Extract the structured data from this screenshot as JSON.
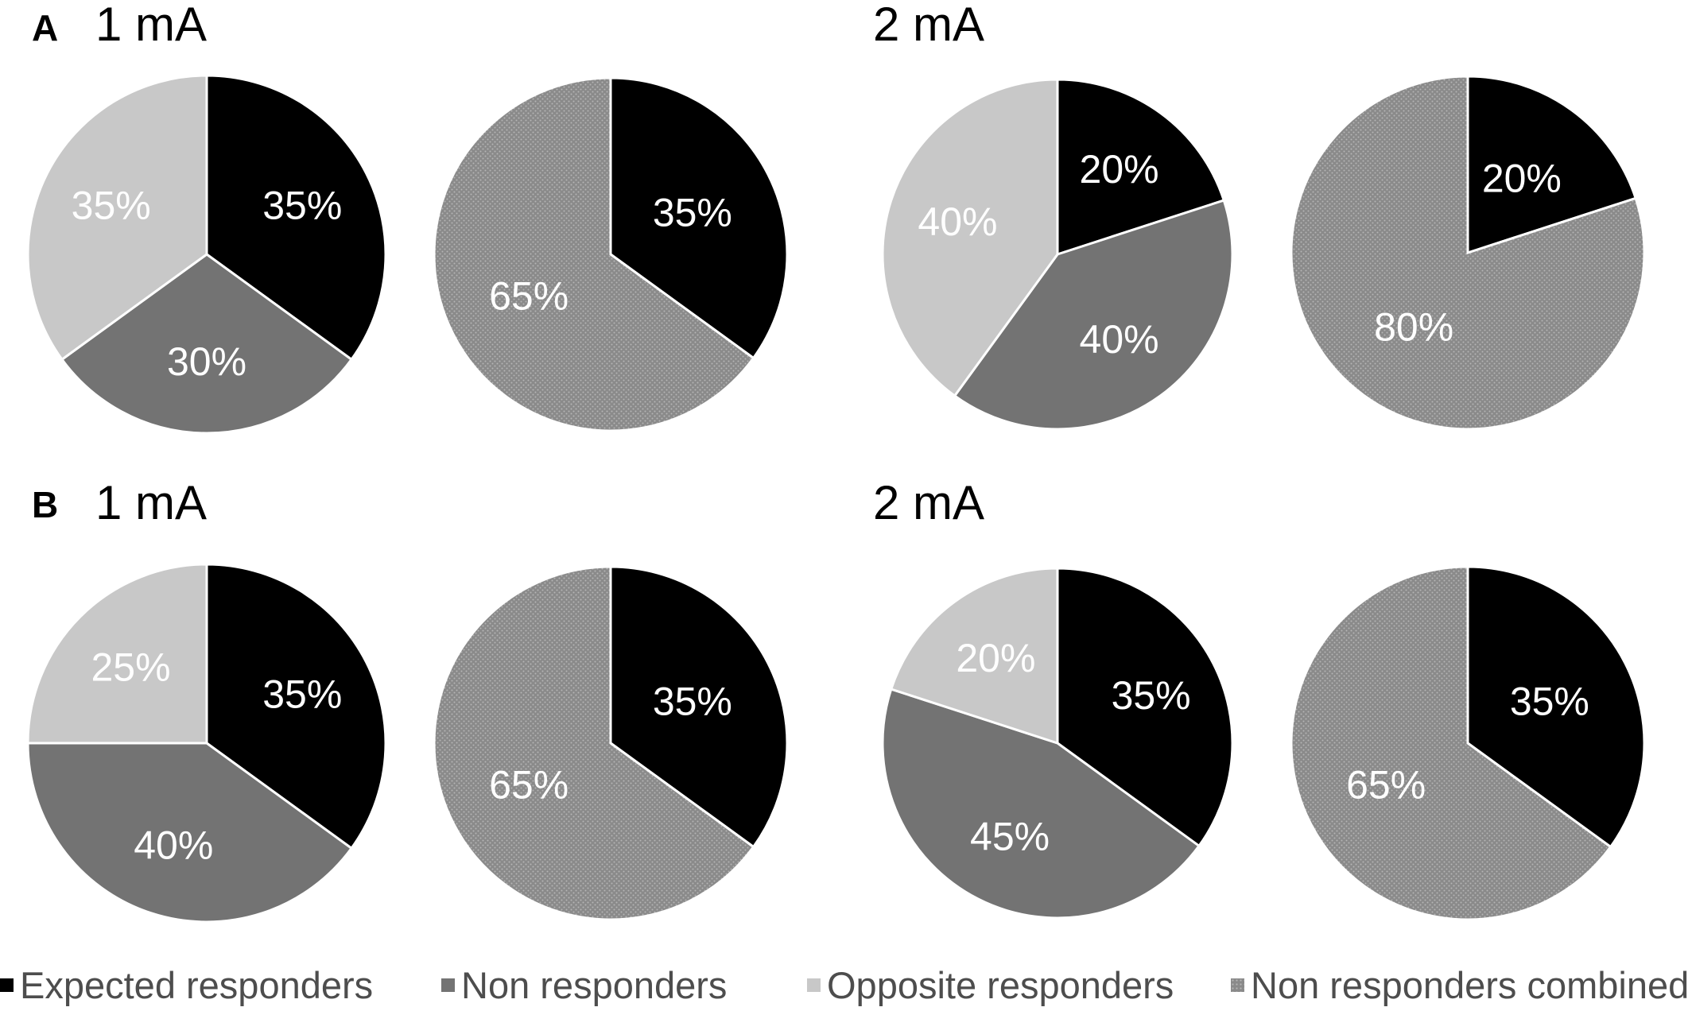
{
  "panels": [
    {
      "letter": "A",
      "left_condition": "1 mA",
      "right_condition": "2 mA"
    },
    {
      "letter": "B",
      "left_condition": "1 mA",
      "right_condition": "2 mA"
    }
  ],
  "colors": {
    "expected": "#000000",
    "non": "#737373",
    "opposite": "#c8c8c8",
    "combined": "#8a8a8a"
  },
  "legend": [
    {
      "key": "expected",
      "label": "Expected responders"
    },
    {
      "key": "non",
      "label": "Non responders"
    },
    {
      "key": "opposite",
      "label": "Opposite responders"
    },
    {
      "key": "combined",
      "label": "Non responders combined"
    }
  ],
  "chart_data": [
    {
      "type": "pie",
      "panel": "A",
      "condition": "1 mA",
      "slices": [
        {
          "key": "expected",
          "label": "35%",
          "value": 35
        },
        {
          "key": "non",
          "label": "30%",
          "value": 30
        },
        {
          "key": "opposite",
          "label": "35%",
          "value": 35
        }
      ]
    },
    {
      "type": "pie",
      "panel": "A",
      "condition": "1 mA",
      "slices": [
        {
          "key": "expected",
          "label": "35%",
          "value": 35
        },
        {
          "key": "combined",
          "label": "65%",
          "value": 65
        }
      ]
    },
    {
      "type": "pie",
      "panel": "A",
      "condition": "2 mA",
      "slices": [
        {
          "key": "expected",
          "label": "20%",
          "value": 20
        },
        {
          "key": "non",
          "label": "40%",
          "value": 40
        },
        {
          "key": "opposite",
          "label": "40%",
          "value": 40
        }
      ]
    },
    {
      "type": "pie",
      "panel": "A",
      "condition": "2 mA",
      "slices": [
        {
          "key": "expected",
          "label": "20%",
          "value": 20
        },
        {
          "key": "combined",
          "label": "80%",
          "value": 80
        }
      ]
    },
    {
      "type": "pie",
      "panel": "B",
      "condition": "1 mA",
      "slices": [
        {
          "key": "expected",
          "label": "35%",
          "value": 35
        },
        {
          "key": "non",
          "label": "40%",
          "value": 40
        },
        {
          "key": "opposite",
          "label": "25%",
          "value": 25
        }
      ]
    },
    {
      "type": "pie",
      "panel": "B",
      "condition": "1 mA",
      "slices": [
        {
          "key": "expected",
          "label": "35%",
          "value": 35
        },
        {
          "key": "combined",
          "label": "65%",
          "value": 65
        }
      ]
    },
    {
      "type": "pie",
      "panel": "B",
      "condition": "2 mA",
      "slices": [
        {
          "key": "expected",
          "label": "35%",
          "value": 35
        },
        {
          "key": "non",
          "label": "45%",
          "value": 45
        },
        {
          "key": "opposite",
          "label": "20%",
          "value": 20
        }
      ]
    },
    {
      "type": "pie",
      "panel": "B",
      "condition": "2 mA",
      "slices": [
        {
          "key": "expected",
          "label": "35%",
          "value": 35
        },
        {
          "key": "combined",
          "label": "65%",
          "value": 65
        }
      ]
    }
  ]
}
